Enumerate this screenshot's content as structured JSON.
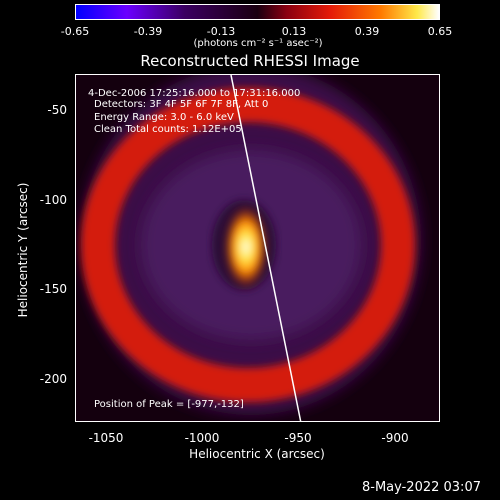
{
  "colorbar": {
    "ticks": [
      "-0.65",
      "-0.39",
      "-0.13",
      "0.13",
      "0.39",
      "0.65"
    ],
    "units": "(photons cm⁻² s⁻¹ asec⁻²)"
  },
  "title": "Reconstructed RHESSI Image",
  "annotations": {
    "time_range": "4-Dec-2006 17:25:16.000 to 17:31:16.000",
    "detectors": "Detectors: 3F 4F 5F 6F 7F 8F, Att 0",
    "energy": "Energy Range: 3.0 - 6.0 keV",
    "clean": "Clean     Total counts: 1.12E+05",
    "peak": "Position of Peak = [-977,-132]"
  },
  "axes": {
    "xlabel": "Heliocentric X (arcsec)",
    "ylabel": "Heliocentric Y (arcsec)",
    "xticks": [
      "-1050",
      "-1000",
      "-950",
      "-900"
    ],
    "yticks": [
      "-50",
      "-100",
      "-150",
      "-200"
    ]
  },
  "chart_data": {
    "type": "heatmap",
    "title": "Reconstructed RHESSI Image",
    "xlabel": "Heliocentric X (arcsec)",
    "ylabel": "Heliocentric Y (arcsec)",
    "xlim": [
      -1070,
      -880
    ],
    "ylim": [
      -222,
      -30
    ],
    "color_scale": [
      -0.65,
      0.65
    ],
    "color_unit": "photons cm^-2 s^-1 asec^-2",
    "peak_position": [
      -977,
      -132
    ],
    "colors": {
      "background": "#000000",
      "low": "#0000ff",
      "mid": "#1a0010",
      "high": "#ffffff",
      "ring": "#e41a08",
      "core": "#ffe94a"
    }
  },
  "footer": {
    "timestamp": "8-May-2022 03:07"
  }
}
